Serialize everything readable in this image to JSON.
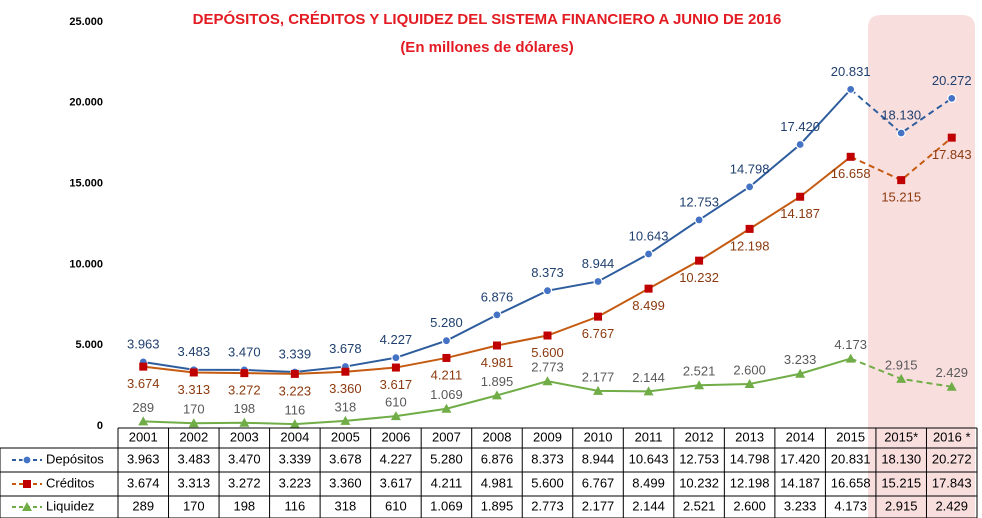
{
  "chart_data": {
    "type": "line",
    "title": "DEPÓSITOS, CRÉDITOS Y LIQUIDEZ DEL SISTEMA FINANCIERO A JUNIO DE 2016",
    "subtitle": "(En millones de dólares)",
    "categories": [
      "2001",
      "2002",
      "2003",
      "2004",
      "2005",
      "2006",
      "2007",
      "2008",
      "2009",
      "2010",
      "2011",
      "2012",
      "2013",
      "2014",
      "2015",
      "2015*",
      "2016 *"
    ],
    "ylim": [
      0,
      25000
    ],
    "yticks": [
      0,
      {
        "value": 5000,
        "label": "5.000"
      },
      {
        "value": 10000,
        "label": "10.000"
      },
      {
        "value": 15000,
        "label": "15.000"
      },
      {
        "value": 20000,
        "label": "20.000"
      },
      {
        "value": 25000,
        "label": "25.000"
      }
    ],
    "series": [
      {
        "name": "Depósitos",
        "color": "#2e5d9e",
        "values": [
          3963,
          3483,
          3470,
          3339,
          3678,
          4227,
          5280,
          6876,
          8373,
          8944,
          10643,
          12753,
          14798,
          17420,
          20831,
          18130,
          20272
        ],
        "value_labels": [
          "3.963",
          "3.483",
          "3.470",
          "3.339",
          "3.678",
          "4.227",
          "5.280",
          "6.876",
          "8.373",
          "8.944",
          "10.643",
          "12.753",
          "14.798",
          "17.420",
          "20.831",
          "18.130",
          "20.272"
        ]
      },
      {
        "name": "Créditos",
        "color": "#c55a11",
        "values": [
          3674,
          3313,
          3272,
          3223,
          3360,
          3617,
          4211,
          4981,
          5600,
          6767,
          8499,
          10232,
          12198,
          14187,
          16658,
          15215,
          17843
        ],
        "value_labels": [
          "3.674",
          "3.313",
          "3.272",
          "3.223",
          "3.360",
          "3.617",
          "4.211",
          "4.981",
          "5.600",
          "6.767",
          "8.499",
          "10.232",
          "12.198",
          "14.187",
          "16.658",
          "15.215",
          "17.843"
        ]
      },
      {
        "name": "Liquidez",
        "color": "#70ad47",
        "values": [
          289,
          170,
          198,
          116,
          318,
          610,
          1069,
          1895,
          2773,
          2177,
          2144,
          2521,
          2600,
          3233,
          4173,
          2915,
          2429
        ],
        "value_labels": [
          "289",
          "170",
          "198",
          "116",
          "318",
          "610",
          "1.069",
          "1.895",
          "2.773",
          "2.177",
          "2.144",
          "2.521",
          "2.600",
          "3.233",
          "4.173",
          "2.915",
          "2.429"
        ]
      }
    ]
  }
}
